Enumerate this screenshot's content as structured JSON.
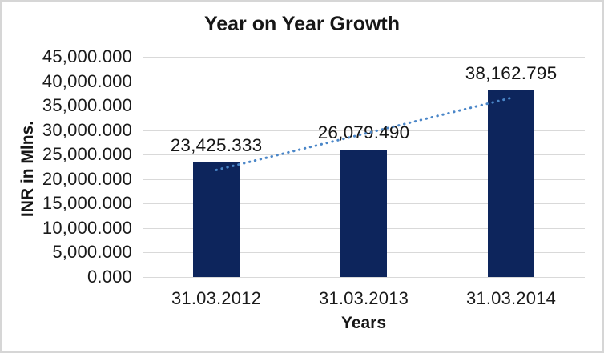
{
  "chart_data": {
    "type": "bar",
    "title": "Year on Year Growth",
    "categories": [
      "31.03.2012",
      "31.03.2013",
      "31.03.2014"
    ],
    "values": [
      23425.333,
      26079.49,
      38162.795
    ],
    "data_labels": [
      "23,425.333",
      "26,079.490",
      "38,162.795"
    ],
    "xlabel": "Years",
    "ylabel": "INR in Mlns.",
    "ylim": [
      0,
      45000
    ],
    "ytick_step": 5000,
    "ytick_labels": [
      "0.000",
      "5,000.000",
      "10,000.000",
      "15,000.000",
      "20,000.000",
      "25,000.000",
      "30,000.000",
      "35,000.000",
      "40,000.000",
      "45,000.000"
    ],
    "grid": true,
    "legend": "none",
    "trendline": {
      "type": "linear",
      "style": "dotted"
    },
    "colors": {
      "bar": "#0d255c",
      "trendline": "#4a86c8",
      "gridline": "#d9d9d9",
      "text": "#161616",
      "border": "#d6d6d6",
      "background": "#ffffff"
    }
  }
}
